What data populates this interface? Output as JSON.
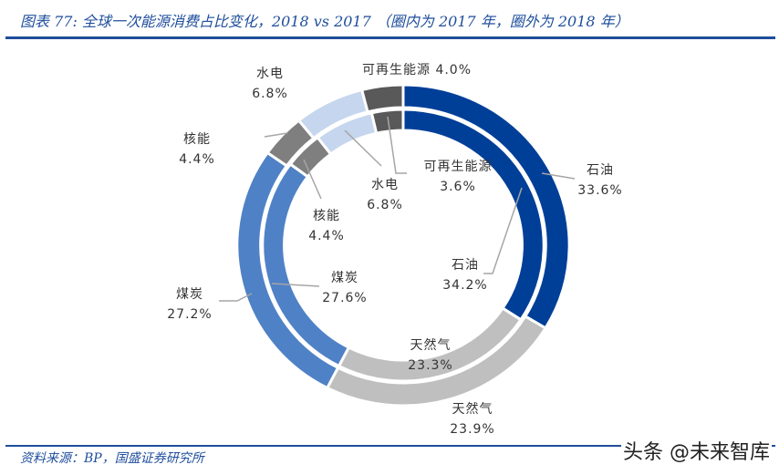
{
  "title": "图表 77: 全球一次能源消费占比变化，2018 vs 2017 （圈内为 2017 年，圈外为 2018 年）",
  "source": "资料来源：BP，国盛证券研究所",
  "watermark": "头条 @未来智库",
  "labels": {
    "outer_oil": {
      "name": "石油",
      "value": "33.6%"
    },
    "outer_gas": {
      "name": "天然气",
      "value": "23.9%"
    },
    "outer_coal": {
      "name": "煤炭",
      "value": "27.2%"
    },
    "outer_nuclear": {
      "name": "核能",
      "value": "4.4%"
    },
    "outer_hydro": {
      "name": "水电",
      "value": "6.8%"
    },
    "outer_renew": {
      "name": "可再生能源",
      "value": "4.0%"
    },
    "inner_oil": {
      "name": "石油",
      "value": "34.2%"
    },
    "inner_gas": {
      "name": "天然气",
      "value": "23.3%"
    },
    "inner_coal": {
      "name": "煤炭",
      "value": "27.6%"
    },
    "inner_nuclear": {
      "name": "核能",
      "value": "4.4%"
    },
    "inner_hydro": {
      "name": "水电",
      "value": "6.8%"
    },
    "inner_renew": {
      "name": "可再生能源",
      "value": "3.6%"
    }
  },
  "chart_data": {
    "type": "pie",
    "subtype": "double-donut",
    "title": "全球一次能源消费占比变化，2018 vs 2017",
    "subtitle": "圈内为 2017 年，圈外为 2018 年",
    "categories": [
      "石油",
      "天然气",
      "煤炭",
      "核能",
      "水电",
      "可再生能源"
    ],
    "colors": [
      "#003f98",
      "#bfbfbf",
      "#4f81c6",
      "#7f7f7f",
      "#c5d6ee",
      "#595959"
    ],
    "series": [
      {
        "name": "2017 (inner ring)",
        "values": [
          34.2,
          23.3,
          27.6,
          4.4,
          6.8,
          3.6
        ]
      },
      {
        "name": "2018 (outer ring)",
        "values": [
          33.6,
          23.9,
          27.2,
          4.4,
          6.8,
          4.0
        ]
      }
    ],
    "start_angle": "12 o'clock, clockwise",
    "legend": "none (data labels with leader lines)"
  }
}
